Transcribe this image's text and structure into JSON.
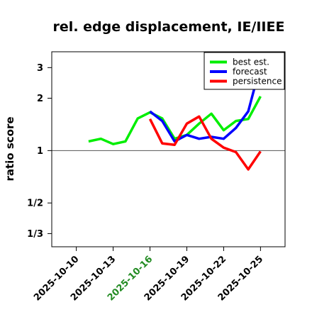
{
  "chart_data": {
    "type": "line",
    "title": "rel. edge displacement, IE/IIEE",
    "xlabel": "",
    "ylabel": "ratio score",
    "y_scale": "log",
    "ylim": [
      0.28,
      3.7
    ],
    "xlim": [
      "2025-10-08",
      "2025-10-27"
    ],
    "y_ticks": [
      {
        "value": 0.333333,
        "label": "1/3"
      },
      {
        "value": 0.5,
        "label": "1/2"
      },
      {
        "value": 1,
        "label": "1"
      },
      {
        "value": 2,
        "label": "2"
      },
      {
        "value": 3,
        "label": "3"
      }
    ],
    "x_ticks": [
      {
        "date": "2025-10-10",
        "label": "2025-10-10",
        "color": "#000000"
      },
      {
        "date": "2025-10-13",
        "label": "2025-10-13",
        "color": "#000000"
      },
      {
        "date": "2025-10-16",
        "label": "2025-10-16",
        "color": "#228b22"
      },
      {
        "date": "2025-10-19",
        "label": "2025-10-19",
        "color": "#000000"
      },
      {
        "date": "2025-10-22",
        "label": "2025-10-22",
        "color": "#000000"
      },
      {
        "date": "2025-10-25",
        "label": "2025-10-25",
        "color": "#000000"
      }
    ],
    "reference_line": 1,
    "grid": false,
    "legend_position": "top-right",
    "series": [
      {
        "name": "best est.",
        "color": "#00ee00",
        "x": [
          "2025-10-11",
          "2025-10-12",
          "2025-10-13",
          "2025-10-14",
          "2025-10-15",
          "2025-10-16",
          "2025-10-17",
          "2025-10-18",
          "2025-10-19",
          "2025-10-20",
          "2025-10-21",
          "2025-10-22",
          "2025-10-23",
          "2025-10-24",
          "2025-10-25"
        ],
        "values": [
          1.13,
          1.17,
          1.09,
          1.13,
          1.53,
          1.66,
          1.53,
          1.17,
          1.23,
          1.43,
          1.63,
          1.31,
          1.48,
          1.52,
          2.05
        ]
      },
      {
        "name": "forecast",
        "color": "#0000ff",
        "x": [
          "2025-10-16",
          "2025-10-17",
          "2025-10-18",
          "2025-10-19",
          "2025-10-20",
          "2025-10-21",
          "2025-10-22",
          "2025-10-23",
          "2025-10-24",
          "2025-10-25"
        ],
        "values": [
          1.68,
          1.48,
          1.13,
          1.23,
          1.17,
          1.2,
          1.17,
          1.35,
          1.68,
          3.1
        ]
      },
      {
        "name": "persistence",
        "color": "#ff0000",
        "x": [
          "2025-10-16",
          "2025-10-17",
          "2025-10-18",
          "2025-10-19",
          "2025-10-20",
          "2025-10-21",
          "2025-10-22",
          "2025-10-23",
          "2025-10-24",
          "2025-10-25"
        ],
        "values": [
          1.52,
          1.1,
          1.08,
          1.43,
          1.57,
          1.17,
          1.04,
          0.98,
          0.78,
          0.99
        ]
      }
    ]
  }
}
